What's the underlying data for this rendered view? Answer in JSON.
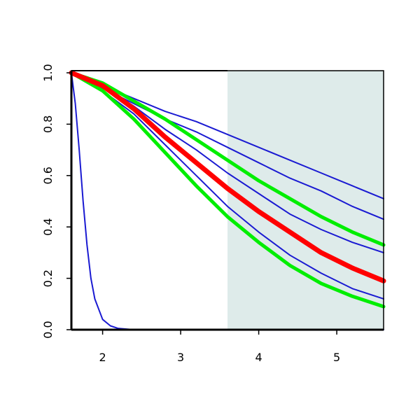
{
  "chart_data": {
    "type": "line",
    "x": [
      1.6,
      2.0,
      2.4,
      2.8,
      3.2,
      3.6,
      4.0,
      4.4,
      4.8,
      5.2,
      5.6
    ],
    "xlim": [
      1.6,
      5.6
    ],
    "xticks": [
      2,
      3,
      4,
      5
    ],
    "ylim": [
      0,
      1
    ],
    "yticks": [
      {
        "value": 0,
        "label": "0.0"
      },
      {
        "value": 0.2,
        "label": "0.2"
      },
      {
        "value": 0.4,
        "label": "0.4"
      },
      {
        "value": 0.6,
        "label": "0.6"
      },
      {
        "value": 0.8,
        "label": "0.8"
      },
      {
        "value": 1,
        "label": "1.0"
      }
    ],
    "shaded_region": {
      "x": [
        3.6,
        5.6
      ],
      "color": "#deebea"
    },
    "series": [
      {
        "color": "#1a1ad2",
        "width": 2,
        "values": [
          1,
          0.95,
          0.9,
          0.85,
          0.81,
          0.76,
          0.71,
          0.66,
          0.61,
          0.56,
          0.51
        ]
      },
      {
        "color": "#1a1ad2",
        "width": 2,
        "values": [
          1,
          0.94,
          0.88,
          0.82,
          0.77,
          0.71,
          0.65,
          0.59,
          0.54,
          0.48,
          0.43
        ]
      },
      {
        "color": "#1a1ad2",
        "width": 2,
        "values": [
          1,
          0.95,
          0.87,
          0.78,
          0.7,
          0.61,
          0.53,
          0.45,
          0.39,
          0.34,
          0.3
        ]
      },
      {
        "color": "#1a1ad2",
        "width": 2,
        "values": [
          1,
          0.93,
          0.84,
          0.72,
          0.6,
          0.48,
          0.38,
          0.29,
          0.22,
          0.16,
          0.12
        ]
      },
      {
        "color": "#1a1ad2",
        "width": 2,
        "x": [
          1.6,
          1.65,
          1.7,
          1.75,
          1.8,
          1.85,
          1.9,
          2.0,
          2.1,
          2.2,
          2.4,
          3.0,
          4.0,
          5.0,
          5.6
        ],
        "values": [
          1,
          0.88,
          0.7,
          0.5,
          0.33,
          0.2,
          0.12,
          0.04,
          0.015,
          0.005,
          0,
          0,
          0,
          0,
          0
        ]
      },
      {
        "color": "#00ee00",
        "width": 5,
        "values": [
          1,
          0.96,
          0.89,
          0.82,
          0.74,
          0.66,
          0.58,
          0.51,
          0.44,
          0.38,
          0.33
        ]
      },
      {
        "color": "#00ee00",
        "width": 5,
        "values": [
          1,
          0.93,
          0.82,
          0.69,
          0.56,
          0.44,
          0.34,
          0.25,
          0.18,
          0.13,
          0.09
        ]
      },
      {
        "color": "#ff0000",
        "width": 7,
        "values": [
          1,
          0.95,
          0.86,
          0.75,
          0.65,
          0.55,
          0.46,
          0.38,
          0.3,
          0.24,
          0.19
        ]
      }
    ]
  }
}
